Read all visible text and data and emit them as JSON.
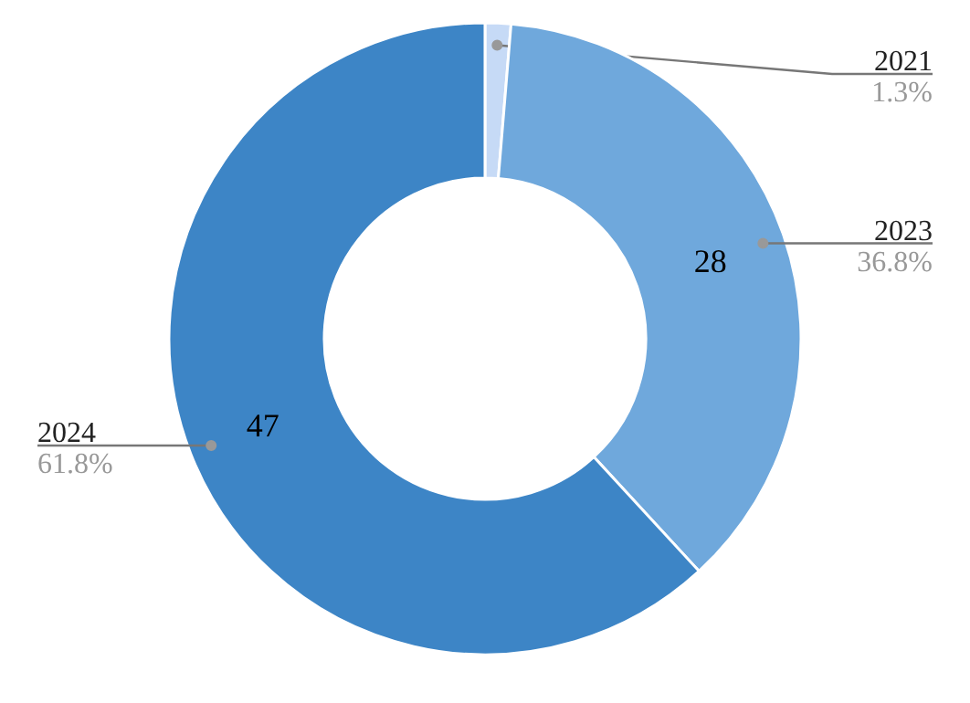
{
  "chart_data": {
    "type": "donut",
    "categories": [
      "2021",
      "2023",
      "2024"
    ],
    "values": [
      1,
      28,
      47
    ],
    "colors": [
      "#c6daf6",
      "#6fa8dc",
      "#3d85c6"
    ],
    "value_labels": [
      null,
      "28",
      "47"
    ],
    "annotations": [
      "1.3%",
      "36.8%",
      "61.8%"
    ]
  }
}
